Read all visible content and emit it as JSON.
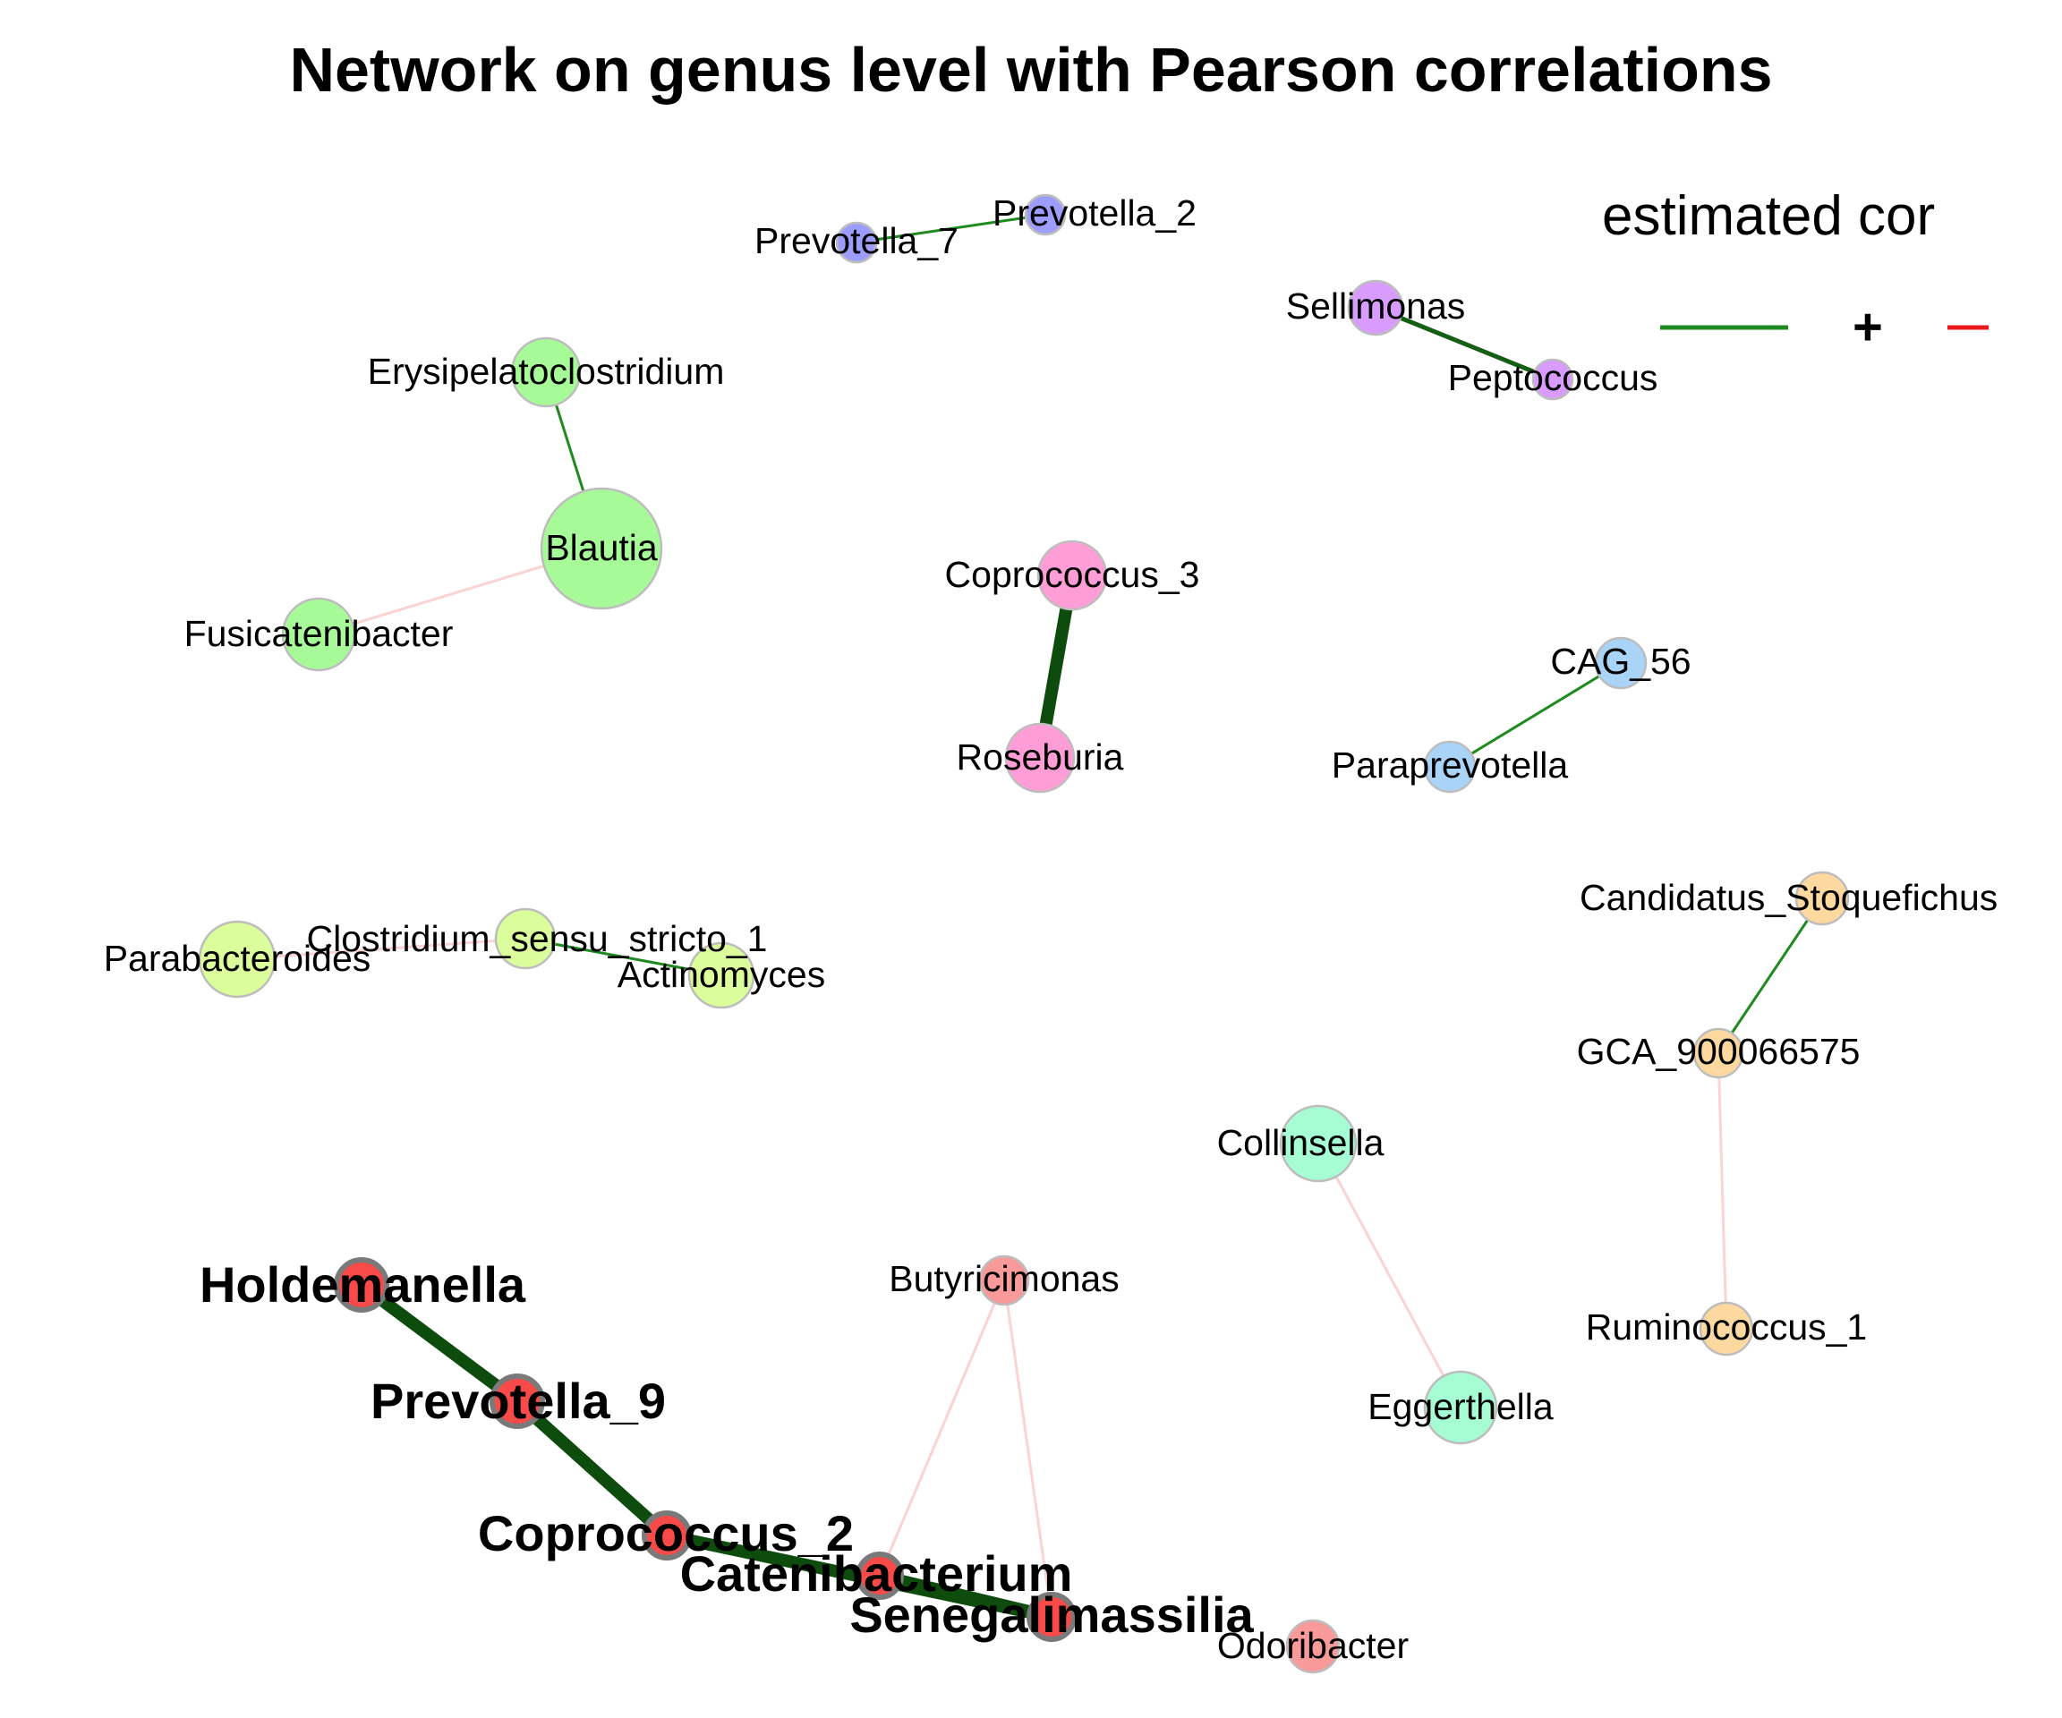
{
  "title": "Network on genus level with Pearson correlations",
  "legend": {
    "title": "estimated cor",
    "positive_sign": "+",
    "positive_color": "#1f8a1f",
    "negative_color": "#e8191b"
  },
  "nodes": [
    {
      "id": "prevotella_7",
      "label": "Prevotella_7",
      "color": "#9d9dff",
      "hub": false
    },
    {
      "id": "prevotella_2",
      "label": "Prevotella_2",
      "color": "#9d9dff",
      "hub": false
    },
    {
      "id": "sellimonas",
      "label": "Sellimonas",
      "color": "#d89cff",
      "hub": false
    },
    {
      "id": "peptococcus",
      "label": "Peptococcus",
      "color": "#d89cff",
      "hub": false
    },
    {
      "id": "erysipelatoclostridium",
      "label": "Erysipelatoclostridium",
      "color": "#a6fb98",
      "hub": false
    },
    {
      "id": "blautia",
      "label": "Blautia",
      "color": "#a6fb98",
      "hub": false
    },
    {
      "id": "fusicatenibacter",
      "label": "Fusicatenibacter",
      "color": "#a6fb98",
      "hub": false
    },
    {
      "id": "coprococcus_3",
      "label": "Coprococcus_3",
      "color": "#ff9ed6",
      "hub": false
    },
    {
      "id": "roseburia",
      "label": "Roseburia",
      "color": "#ff9ed6",
      "hub": false
    },
    {
      "id": "cag_56",
      "label": "CAG_56",
      "color": "#a9d4f8",
      "hub": false
    },
    {
      "id": "paraprevotella",
      "label": "Paraprevotella",
      "color": "#a9d4f8",
      "hub": false
    },
    {
      "id": "parabacteroides",
      "label": "Parabacteroides",
      "color": "#dbfd9c",
      "hub": false
    },
    {
      "id": "clostridium_ss1",
      "label": "Clostridium_sensu_stricto_1",
      "color": "#dbfd9c",
      "hub": false
    },
    {
      "id": "actinomyces",
      "label": "Actinomyces",
      "color": "#dbfd9c",
      "hub": false
    },
    {
      "id": "candidatus_stoquefichus",
      "label": "Candidatus_Stoquefichus",
      "color": "#fdd9a0",
      "hub": false
    },
    {
      "id": "gca_900066575",
      "label": "GCA_900066575",
      "color": "#fdd9a0",
      "hub": false
    },
    {
      "id": "ruminococcus_1",
      "label": "Ruminococcus_1",
      "color": "#fdd9a0",
      "hub": false
    },
    {
      "id": "collinsella",
      "label": "Collinsella",
      "color": "#a6fdd4",
      "hub": false
    },
    {
      "id": "eggerthella",
      "label": "Eggerthella",
      "color": "#a6fdd4",
      "hub": false
    },
    {
      "id": "butyricimonas",
      "label": "Butyricimonas",
      "color": "#f99a9a",
      "hub": false
    },
    {
      "id": "odoribacter",
      "label": "Odoribacter",
      "color": "#f99a9a",
      "hub": false
    },
    {
      "id": "holdemanella",
      "label": "Holdemanella",
      "color": "#f94a4a",
      "hub": true
    },
    {
      "id": "prevotella_9",
      "label": "Prevotella_9",
      "color": "#f94a4a",
      "hub": true
    },
    {
      "id": "coprococcus_2",
      "label": "Coprococcus_2",
      "color": "#f94a4a",
      "hub": true
    },
    {
      "id": "catenibacterium",
      "label": "Catenibacterium",
      "color": "#f94a4a",
      "hub": true
    },
    {
      "id": "senegalimassilia",
      "label": "Senegalimassilia",
      "color": "#f94a4a",
      "hub": true
    }
  ],
  "edges": [
    {
      "source": "prevotella_7",
      "target": "prevotella_2",
      "sign": "positive",
      "strength": "weak"
    },
    {
      "source": "sellimonas",
      "target": "peptococcus",
      "sign": "positive",
      "strength": "medium"
    },
    {
      "source": "erysipelatoclostridium",
      "target": "blautia",
      "sign": "positive",
      "strength": "weak"
    },
    {
      "source": "blautia",
      "target": "fusicatenibacter",
      "sign": "negative",
      "strength": "weak"
    },
    {
      "source": "coprococcus_3",
      "target": "roseburia",
      "sign": "positive",
      "strength": "strong"
    },
    {
      "source": "cag_56",
      "target": "paraprevotella",
      "sign": "positive",
      "strength": "weak"
    },
    {
      "source": "parabacteroides",
      "target": "clostridium_ss1",
      "sign": "negative",
      "strength": "weak"
    },
    {
      "source": "clostridium_ss1",
      "target": "actinomyces",
      "sign": "positive",
      "strength": "weak"
    },
    {
      "source": "candidatus_stoquefichus",
      "target": "gca_900066575",
      "sign": "positive",
      "strength": "weak"
    },
    {
      "source": "gca_900066575",
      "target": "ruminococcus_1",
      "sign": "negative",
      "strength": "weak"
    },
    {
      "source": "collinsella",
      "target": "eggerthella",
      "sign": "negative",
      "strength": "weak"
    },
    {
      "source": "butyricimonas",
      "target": "catenibacterium",
      "sign": "negative",
      "strength": "weak"
    },
    {
      "source": "butyricimonas",
      "target": "senegalimassilia",
      "sign": "negative",
      "strength": "weak"
    },
    {
      "source": "holdemanella",
      "target": "prevotella_9",
      "sign": "positive",
      "strength": "strong"
    },
    {
      "source": "prevotella_9",
      "target": "coprococcus_2",
      "sign": "positive",
      "strength": "strong"
    },
    {
      "source": "coprococcus_2",
      "target": "catenibacterium",
      "sign": "positive",
      "strength": "weak"
    },
    {
      "source": "coprococcus_2",
      "target": "senegalimassilia",
      "sign": "positive",
      "strength": "strong"
    },
    {
      "source": "catenibacterium",
      "target": "senegalimassilia",
      "sign": "positive",
      "strength": "strong"
    }
  ]
}
